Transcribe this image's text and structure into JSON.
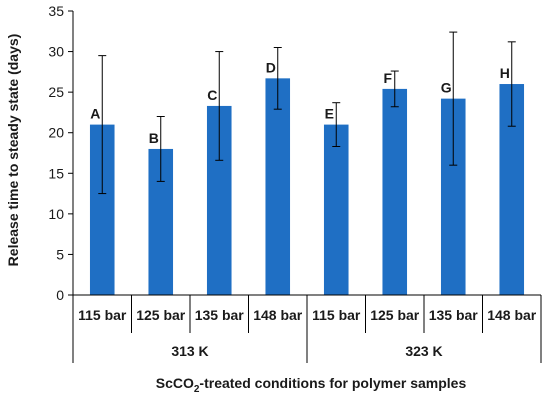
{
  "chart_data": {
    "type": "bar",
    "ylabel": "Release time to steady state (days)",
    "xlabel": "ScCO₂-treated conditions for polymer samples",
    "xlabel_parts": {
      "pre": "ScCO",
      "sub": "2",
      "post": "-treated conditions for polymer samples"
    },
    "ylim": [
      0,
      35
    ],
    "yticks": [
      0,
      5,
      10,
      15,
      20,
      25,
      30,
      35
    ],
    "grid": false,
    "bar_color": "#1f6fc4",
    "groups": [
      {
        "label": "313 K",
        "categories": [
          "115 bar",
          "125 bar",
          "135 bar",
          "148 bar"
        ],
        "values": [
          21.0,
          18.0,
          23.3,
          26.7
        ],
        "errors": [
          8.5,
          4.0,
          6.7,
          3.8
        ],
        "letters": [
          "A",
          "B",
          "C",
          "D"
        ]
      },
      {
        "label": "323 K",
        "categories": [
          "115 bar",
          "125 bar",
          "135 bar",
          "148 bar"
        ],
        "values": [
          21.0,
          25.4,
          24.2,
          26.0
        ],
        "errors": [
          2.7,
          2.2,
          8.2,
          5.2
        ],
        "letters": [
          "E",
          "F",
          "G",
          "H"
        ]
      }
    ]
  }
}
